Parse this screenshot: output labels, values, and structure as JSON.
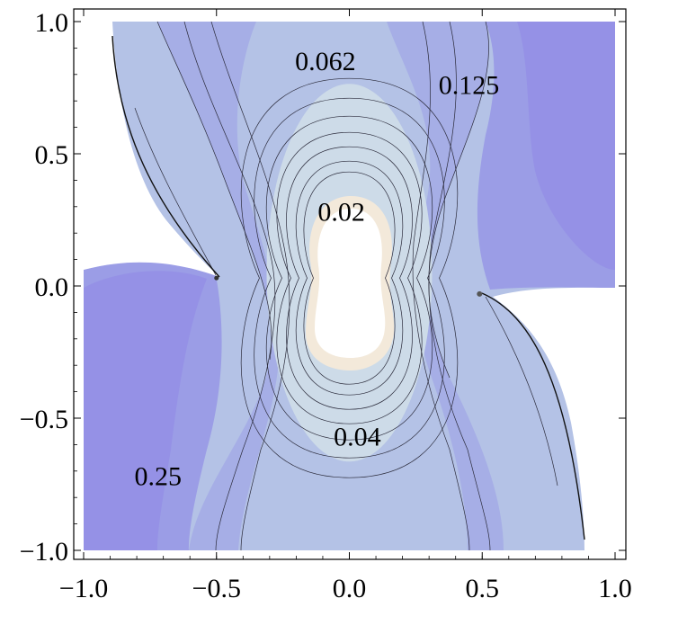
{
  "chart_data": {
    "type": "contour",
    "title": "",
    "xlabel": "",
    "ylabel": "",
    "xlim": [
      -1.0,
      1.0
    ],
    "ylim": [
      -1.0,
      1.0
    ],
    "grid": false,
    "legend": "none",
    "x_ticks": [
      "-1.0",
      "-0.5",
      "0.0",
      "0.5",
      "1.0"
    ],
    "y_ticks": [
      "1.0",
      "0.5",
      "0.0",
      "-0.5",
      "-1.0"
    ],
    "contour_levels": [
      {
        "label": "0.02",
        "x": -0.03,
        "y": 0.28
      },
      {
        "label": "0.04",
        "x": 0.03,
        "y": -0.57
      },
      {
        "label": "0.062",
        "x": -0.09,
        "y": 0.85
      },
      {
        "label": "0.125",
        "x": 0.45,
        "y": 0.76
      },
      {
        "label": "0.25",
        "x": -0.72,
        "y": -0.72
      }
    ],
    "colors": {
      "lowest": "#f3e9da",
      "low": "#cddbe8",
      "mid": "#b4c2e6",
      "mid_high": "#a6aee6",
      "high": "#9b9de6",
      "highest": "#9591e6",
      "line": "#2a2a3a"
    }
  }
}
